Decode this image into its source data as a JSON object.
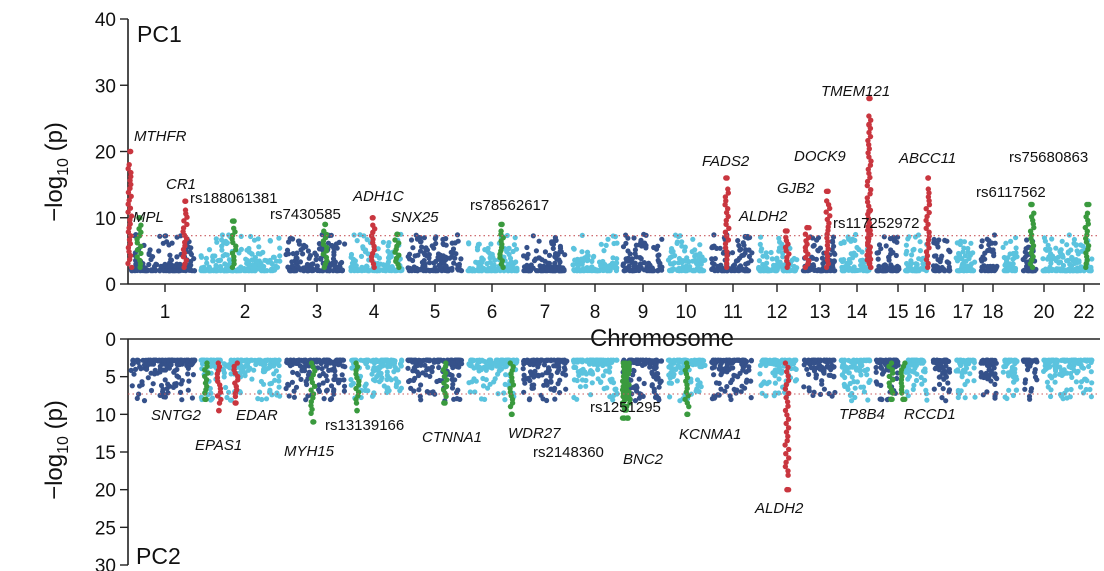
{
  "colors": {
    "dark": "#35518a",
    "light": "#5bc3de",
    "red": "#c9363f",
    "green": "#3a9a3e",
    "threshold": "#c8585c"
  },
  "chart_data": [
    {
      "type": "scatter",
      "subtype": "manhattan",
      "panel": "PC1",
      "ylabel": "-log10 (p)",
      "ylim": [
        0,
        40
      ],
      "yticks": [
        "0",
        "10",
        "20",
        "30",
        "40"
      ],
      "threshold": 7.3,
      "xlabel": "Chromosome",
      "chromosomes": [
        "1",
        "2",
        "3",
        "4",
        "5",
        "6",
        "7",
        "8",
        "9",
        "10",
        "11",
        "12",
        "13",
        "14",
        "15",
        "16",
        "17",
        "18",
        "20",
        "22"
      ],
      "hits": [
        {
          "label": "MTHFR",
          "chrom": "1",
          "peak": 20,
          "color": "red",
          "italic": true
        },
        {
          "label": "MPL",
          "chrom": "1",
          "peak": 10,
          "color": "green",
          "italic": true
        },
        {
          "label": "CR1",
          "chrom": "1",
          "peak": 12.5,
          "color": "red",
          "italic": true
        },
        {
          "label": "rs188061381",
          "chrom": "2",
          "peak": 9.5,
          "color": "green",
          "italic": false
        },
        {
          "label": "rs7430585",
          "chrom": "3",
          "peak": 9,
          "color": "green",
          "italic": false
        },
        {
          "label": "ADH1C",
          "chrom": "4",
          "peak": 10,
          "color": "red",
          "italic": true
        },
        {
          "label": "SNX25",
          "chrom": "4",
          "peak": 7.5,
          "color": "green",
          "italic": true
        },
        {
          "label": "rs78562617",
          "chrom": "6",
          "peak": 9,
          "color": "green",
          "italic": false
        },
        {
          "label": "FADS2",
          "chrom": "11",
          "peak": 16,
          "color": "red",
          "italic": true
        },
        {
          "label": "ALDH2",
          "chrom": "12",
          "peak": 8,
          "color": "red",
          "italic": true
        },
        {
          "label": "GJB2",
          "chrom": "13",
          "peak": 8.5,
          "color": "red",
          "italic": true
        },
        {
          "label": "DOCK9",
          "chrom": "13",
          "peak": 14,
          "color": "red",
          "italic": true
        },
        {
          "label": "TMEM121",
          "chrom": "14",
          "peak": 28,
          "color": "red",
          "italic": true
        },
        {
          "label": "rs117252972",
          "chrom": "14",
          "peak": 11,
          "color": "red",
          "italic": false
        },
        {
          "label": "ABCC11",
          "chrom": "16",
          "peak": 16,
          "color": "red",
          "italic": true
        },
        {
          "label": "rs6117562",
          "chrom": "20",
          "peak": 12,
          "color": "green",
          "italic": false
        },
        {
          "label": "rs75680863",
          "chrom": "22",
          "peak": 12,
          "color": "green",
          "italic": false
        }
      ]
    },
    {
      "type": "scatter",
      "subtype": "manhattan",
      "panel": "PC2",
      "ylabel": "-log10 (p)",
      "ylim": [
        0,
        30
      ],
      "yticks": [
        "0",
        "5",
        "10",
        "15",
        "20",
        "25",
        "30"
      ],
      "threshold": 7.3,
      "hits": [
        {
          "label": "SNTG2",
          "chrom": "2",
          "peak": 8,
          "color": "green",
          "italic": true
        },
        {
          "label": "EPAS1",
          "chrom": "2",
          "peak": 9.5,
          "color": "red",
          "italic": true
        },
        {
          "label": "EDAR",
          "chrom": "2",
          "peak": 8.5,
          "color": "red",
          "italic": true
        },
        {
          "label": "MYH15",
          "chrom": "3",
          "peak": 11,
          "color": "green",
          "italic": true
        },
        {
          "label": "rs13139166",
          "chrom": "4",
          "peak": 9.5,
          "color": "green",
          "italic": false
        },
        {
          "label": "CTNNA1",
          "chrom": "5",
          "peak": 8.5,
          "color": "green",
          "italic": true
        },
        {
          "label": "WDR27",
          "chrom": "6",
          "peak": 10,
          "color": "green",
          "italic": true
        },
        {
          "label": "rs1251295",
          "chrom": "9",
          "peak": 10.5,
          "color": "green",
          "italic": false
        },
        {
          "label": "rs2148360",
          "chrom": "9",
          "peak": 9,
          "color": "green",
          "italic": false
        },
        {
          "label": "BNC2",
          "chrom": "9",
          "peak": 10.5,
          "color": "green",
          "italic": true
        },
        {
          "label": "KCNMA1",
          "chrom": "10",
          "peak": 10,
          "color": "green",
          "italic": true
        },
        {
          "label": "ALDH2",
          "chrom": "12",
          "peak": 20,
          "color": "red",
          "italic": true
        },
        {
          "label": "TP8B4",
          "chrom": "15",
          "peak": 8,
          "color": "green",
          "italic": true
        },
        {
          "label": "RCCD1",
          "chrom": "15",
          "peak": 8,
          "color": "green",
          "italic": true
        }
      ]
    }
  ]
}
